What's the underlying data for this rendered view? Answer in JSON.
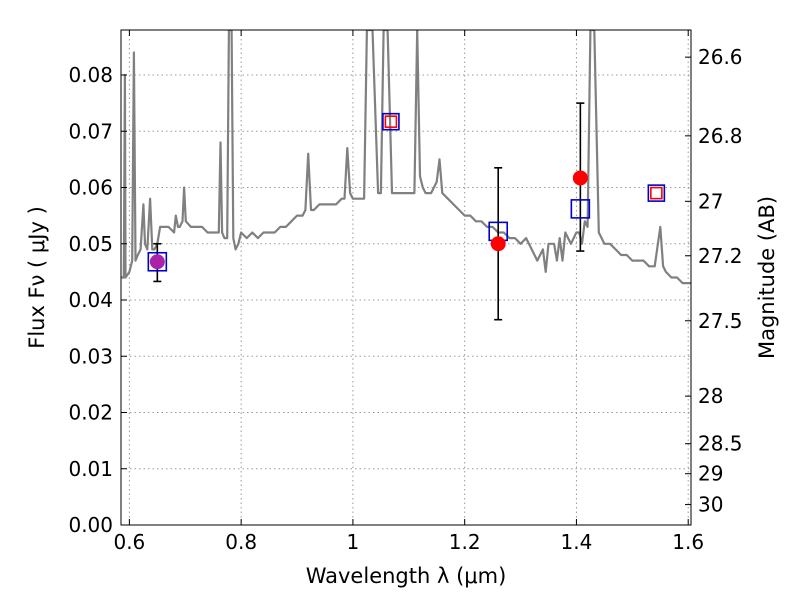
{
  "chart_data": {
    "type": "scatter",
    "xlabel": "Wavelength  λ (μm)",
    "ylabel": "Flux  Fν  ( μJy )",
    "y2label": "Magnitude (AB)",
    "xlim": [
      0.585,
      1.605
    ],
    "ylim": [
      0.0,
      0.088
    ],
    "grid": true,
    "x_ticks": [
      0.6,
      0.8,
      1.0,
      1.2,
      1.4,
      1.6
    ],
    "x_tick_labels": [
      "0.6",
      "0.8",
      "1",
      "1.2",
      "1.4",
      "1.6"
    ],
    "y_ticks": [
      0.0,
      0.01,
      0.02,
      0.03,
      0.04,
      0.05,
      0.06,
      0.07,
      0.08
    ],
    "y_tick_labels": [
      "0.00",
      "0.01",
      "0.02",
      "0.03",
      "0.04",
      "0.05",
      "0.06",
      "0.07",
      "0.08"
    ],
    "mag_ticks": [
      26.6,
      26.8,
      27,
      27.2,
      27.5,
      28,
      28.5,
      29,
      30
    ],
    "mag_tick_labels": [
      "26.6",
      "26.8",
      "27",
      "27.2",
      "27.5",
      "28",
      "28.5",
      "29",
      "30"
    ],
    "series": [
      {
        "style": "line",
        "color": "#808080",
        "points": [
          [
            0.585,
            0.044
          ],
          [
            0.59,
            0.044
          ],
          [
            0.592,
            0.08
          ],
          [
            0.593,
            0.044
          ],
          [
            0.6,
            0.045
          ],
          [
            0.605,
            0.047
          ],
          [
            0.608,
            0.084
          ],
          [
            0.611,
            0.047
          ],
          [
            0.615,
            0.048
          ],
          [
            0.62,
            0.049
          ],
          [
            0.625,
            0.057
          ],
          [
            0.628,
            0.05
          ],
          [
            0.632,
            0.049
          ],
          [
            0.637,
            0.058
          ],
          [
            0.641,
            0.049
          ],
          [
            0.645,
            0.049
          ],
          [
            0.65,
            0.05
          ],
          [
            0.655,
            0.053
          ],
          [
            0.66,
            0.053
          ],
          [
            0.67,
            0.053
          ],
          [
            0.68,
            0.052
          ],
          [
            0.683,
            0.055
          ],
          [
            0.687,
            0.053
          ],
          [
            0.69,
            0.053
          ],
          [
            0.695,
            0.054
          ],
          [
            0.698,
            0.06
          ],
          [
            0.701,
            0.054
          ],
          [
            0.71,
            0.053
          ],
          [
            0.72,
            0.053
          ],
          [
            0.73,
            0.053
          ],
          [
            0.74,
            0.052
          ],
          [
            0.75,
            0.052
          ],
          [
            0.76,
            0.052
          ],
          [
            0.763,
            0.068
          ],
          [
            0.766,
            0.052
          ],
          [
            0.77,
            0.051
          ],
          [
            0.775,
            0.051
          ],
          [
            0.778,
            0.09
          ],
          [
            0.783,
            0.09
          ],
          [
            0.786,
            0.051
          ],
          [
            0.79,
            0.049
          ],
          [
            0.795,
            0.05
          ],
          [
            0.8,
            0.052
          ],
          [
            0.81,
            0.051
          ],
          [
            0.82,
            0.052
          ],
          [
            0.83,
            0.051
          ],
          [
            0.84,
            0.052
          ],
          [
            0.85,
            0.052
          ],
          [
            0.86,
            0.052
          ],
          [
            0.87,
            0.053
          ],
          [
            0.88,
            0.053
          ],
          [
            0.89,
            0.054
          ],
          [
            0.9,
            0.055
          ],
          [
            0.91,
            0.055
          ],
          [
            0.915,
            0.056
          ],
          [
            0.92,
            0.066
          ],
          [
            0.925,
            0.056
          ],
          [
            0.93,
            0.056
          ],
          [
            0.94,
            0.057
          ],
          [
            0.95,
            0.057
          ],
          [
            0.96,
            0.057
          ],
          [
            0.97,
            0.057
          ],
          [
            0.98,
            0.058
          ],
          [
            0.985,
            0.058
          ],
          [
            0.99,
            0.067
          ],
          [
            0.995,
            0.059
          ],
          [
            1.0,
            0.058
          ],
          [
            1.01,
            0.058
          ],
          [
            1.02,
            0.058
          ],
          [
            1.025,
            0.09
          ],
          [
            1.035,
            0.09
          ],
          [
            1.045,
            0.059
          ],
          [
            1.05,
            0.059
          ],
          [
            1.055,
            0.09
          ],
          [
            1.062,
            0.09
          ],
          [
            1.07,
            0.059
          ],
          [
            1.08,
            0.059
          ],
          [
            1.09,
            0.059
          ],
          [
            1.1,
            0.059
          ],
          [
            1.11,
            0.059
          ],
          [
            1.115,
            0.09
          ],
          [
            1.12,
            0.062
          ],
          [
            1.125,
            0.06
          ],
          [
            1.13,
            0.059
          ],
          [
            1.14,
            0.059
          ],
          [
            1.15,
            0.061
          ],
          [
            1.155,
            0.065
          ],
          [
            1.16,
            0.059
          ],
          [
            1.17,
            0.058
          ],
          [
            1.18,
            0.057
          ],
          [
            1.19,
            0.056
          ],
          [
            1.2,
            0.055
          ],
          [
            1.21,
            0.055
          ],
          [
            1.22,
            0.054
          ],
          [
            1.23,
            0.054
          ],
          [
            1.24,
            0.053
          ],
          [
            1.25,
            0.053
          ],
          [
            1.26,
            0.052
          ],
          [
            1.27,
            0.052
          ],
          [
            1.28,
            0.051
          ],
          [
            1.29,
            0.051
          ],
          [
            1.3,
            0.05
          ],
          [
            1.31,
            0.051
          ],
          [
            1.32,
            0.049
          ],
          [
            1.33,
            0.047
          ],
          [
            1.34,
            0.049
          ],
          [
            1.345,
            0.045
          ],
          [
            1.35,
            0.05
          ],
          [
            1.36,
            0.05
          ],
          [
            1.365,
            0.047
          ],
          [
            1.37,
            0.051
          ],
          [
            1.375,
            0.047
          ],
          [
            1.38,
            0.052
          ],
          [
            1.39,
            0.05
          ],
          [
            1.4,
            0.052
          ],
          [
            1.405,
            0.052
          ],
          [
            1.41,
            0.05
          ],
          [
            1.415,
            0.054
          ],
          [
            1.42,
            0.053
          ],
          [
            1.425,
            0.09
          ],
          [
            1.432,
            0.09
          ],
          [
            1.44,
            0.052
          ],
          [
            1.45,
            0.05
          ],
          [
            1.46,
            0.05
          ],
          [
            1.47,
            0.049
          ],
          [
            1.48,
            0.048
          ],
          [
            1.49,
            0.048
          ],
          [
            1.5,
            0.047
          ],
          [
            1.51,
            0.047
          ],
          [
            1.52,
            0.047
          ],
          [
            1.53,
            0.046
          ],
          [
            1.54,
            0.046
          ],
          [
            1.55,
            0.053
          ],
          [
            1.555,
            0.046
          ],
          [
            1.56,
            0.045
          ],
          [
            1.57,
            0.044
          ],
          [
            1.58,
            0.044
          ],
          [
            1.59,
            0.043
          ],
          [
            1.605,
            0.043
          ]
        ]
      },
      {
        "style": "open-square",
        "color": "#0000cc",
        "marker_size": "large",
        "points": [
          [
            0.65,
            0.0468
          ],
          [
            1.26,
            0.0522
          ],
          [
            1.407,
            0.0562
          ]
        ]
      },
      {
        "style": "open-square",
        "color": "#0000cc",
        "marker_size": "small",
        "points": [
          [
            1.068,
            0.0717
          ],
          [
            1.543,
            0.059
          ]
        ]
      },
      {
        "style": "open-square",
        "color": "#ff0000",
        "marker_size": "tiny",
        "points": [
          [
            1.068,
            0.0717
          ],
          [
            1.543,
            0.059
          ]
        ]
      },
      {
        "style": "filled-circle",
        "color": "#ff0000",
        "points": [
          [
            1.26,
            0.05
          ],
          [
            1.407,
            0.0617
          ]
        ]
      },
      {
        "style": "filled-circle",
        "color": "#aa22aa",
        "points": [
          [
            0.65,
            0.0468
          ]
        ]
      },
      {
        "style": "errorbar",
        "color": "#000000",
        "points": [
          [
            0.65,
            0.0433,
            0.05
          ],
          [
            1.26,
            0.0365,
            0.0635
          ],
          [
            1.407,
            0.0487,
            0.075
          ]
        ]
      }
    ]
  }
}
